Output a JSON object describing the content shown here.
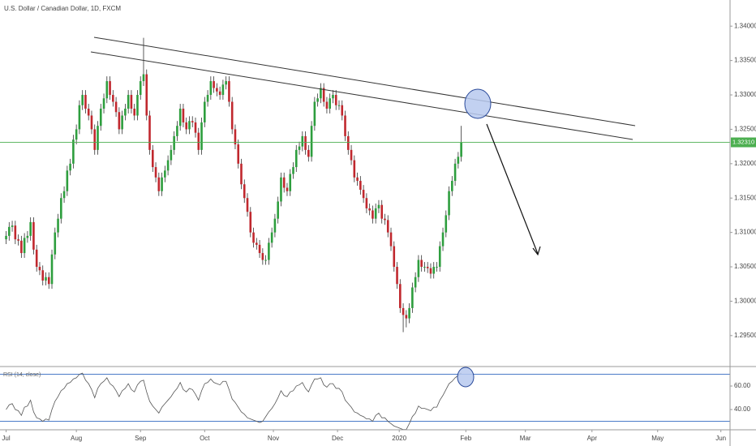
{
  "chart_data": [
    {
      "type": "candlestick",
      "title": "U.S. Dollar / Canadian Dollar, 1D, FXCM",
      "up_color": "#2e9e3e",
      "down_color": "#c0282e",
      "wick_color": "#333333",
      "open": [
        1.309,
        1.3095,
        1.3108,
        1.311,
        1.309,
        1.3088,
        1.307,
        1.3092,
        1.3095,
        1.3115,
        1.3075,
        1.305,
        1.3045,
        1.303,
        1.3035,
        1.3025,
        1.3068,
        1.31,
        1.312,
        1.315,
        1.316,
        1.319,
        1.32,
        1.3235,
        1.325,
        1.3285,
        1.33,
        1.328,
        1.327,
        1.325,
        1.322,
        1.3255,
        1.328,
        1.3295,
        1.332,
        1.33,
        1.329,
        1.3275,
        1.325,
        1.327,
        1.328,
        1.33,
        1.328,
        1.327,
        1.33,
        1.332,
        1.333,
        1.327,
        1.322,
        1.3195,
        1.318,
        1.316,
        1.318,
        1.319,
        1.3205,
        1.322,
        1.324,
        1.3255,
        1.328,
        1.326,
        1.325,
        1.3262,
        1.326,
        1.3245,
        1.322,
        1.326,
        1.329,
        1.33,
        1.332,
        1.331,
        1.3305,
        1.33,
        1.3315,
        1.332,
        1.329,
        1.325,
        1.3228,
        1.32,
        1.317,
        1.315,
        1.313,
        1.31,
        1.3085,
        1.3082,
        1.307,
        1.306,
        1.306,
        1.3085,
        1.31,
        1.312,
        1.3145,
        1.318,
        1.3165,
        1.316,
        1.3185,
        1.3195,
        1.322,
        1.3225,
        1.324,
        1.322,
        1.321,
        1.3255,
        1.329,
        1.3295,
        1.331,
        1.329,
        1.328,
        1.3295,
        1.33,
        1.3285,
        1.3285,
        1.327,
        1.324,
        1.322,
        1.3205,
        1.318,
        1.3175,
        1.3162,
        1.315,
        1.3135,
        1.3132,
        1.312,
        1.3135,
        1.314,
        1.312,
        1.3118,
        1.31,
        1.308,
        1.305,
        1.3025,
        1.299,
        1.298,
        1.2975,
        1.299,
        1.302,
        1.3035,
        1.306,
        1.305,
        1.305,
        1.3048,
        1.304,
        1.305,
        1.305,
        1.308,
        1.31,
        1.3125,
        1.316,
        1.3175,
        1.32,
        1.321
      ],
      "high": [
        1.3102,
        1.3115,
        1.3117,
        1.3117,
        1.3097,
        1.3095,
        1.3099,
        1.3102,
        1.3122,
        1.3122,
        1.3082,
        1.3057,
        1.3052,
        1.3042,
        1.3042,
        1.3075,
        1.3107,
        1.3127,
        1.3157,
        1.3167,
        1.3197,
        1.3207,
        1.3242,
        1.3257,
        1.3292,
        1.3307,
        1.3307,
        1.3287,
        1.3277,
        1.3257,
        1.3262,
        1.3287,
        1.3302,
        1.3327,
        1.3327,
        1.3307,
        1.3297,
        1.3282,
        1.3277,
        1.3287,
        1.3307,
        1.3307,
        1.3287,
        1.3307,
        1.3327,
        1.3383,
        1.3337,
        1.3277,
        1.3227,
        1.3202,
        1.3187,
        1.3187,
        1.3197,
        1.3212,
        1.3227,
        1.3247,
        1.3262,
        1.3287,
        1.3287,
        1.3267,
        1.3269,
        1.3269,
        1.3267,
        1.3252,
        1.3267,
        1.3297,
        1.3307,
        1.3327,
        1.3327,
        1.3317,
        1.3312,
        1.3322,
        1.3327,
        1.3327,
        1.3297,
        1.3257,
        1.3235,
        1.3207,
        1.3177,
        1.3157,
        1.3137,
        1.3107,
        1.3092,
        1.3089,
        1.3077,
        1.3067,
        1.3092,
        1.3107,
        1.3127,
        1.3152,
        1.3187,
        1.3187,
        1.3172,
        1.3192,
        1.3202,
        1.3227,
        1.3232,
        1.3247,
        1.3247,
        1.3227,
        1.3262,
        1.3297,
        1.3302,
        1.3317,
        1.3317,
        1.3297,
        1.3302,
        1.3307,
        1.3307,
        1.3292,
        1.3292,
        1.3277,
        1.3247,
        1.3227,
        1.3212,
        1.3187,
        1.3182,
        1.3169,
        1.3157,
        1.3142,
        1.3139,
        1.3142,
        1.3147,
        1.3147,
        1.3127,
        1.3125,
        1.3107,
        1.3087,
        1.3057,
        1.3032,
        1.2997,
        1.2987,
        1.2997,
        1.3027,
        1.3042,
        1.3067,
        1.3067,
        1.3057,
        1.3057,
        1.3055,
        1.3057,
        1.3057,
        1.3087,
        1.3107,
        1.3132,
        1.3167,
        1.3182,
        1.3207,
        1.3217,
        1.3255
      ],
      "low": [
        1.3083,
        1.3088,
        1.3101,
        1.3083,
        1.3081,
        1.3063,
        1.3063,
        1.3085,
        1.3088,
        1.3068,
        1.3043,
        1.3038,
        1.3023,
        1.3023,
        1.3018,
        1.3018,
        1.3061,
        1.3093,
        1.3113,
        1.3143,
        1.3153,
        1.3183,
        1.3193,
        1.3228,
        1.3243,
        1.3278,
        1.3273,
        1.3263,
        1.3243,
        1.3213,
        1.3213,
        1.3248,
        1.3273,
        1.3288,
        1.3293,
        1.3283,
        1.3268,
        1.3243,
        1.3243,
        1.3263,
        1.3273,
        1.3273,
        1.3263,
        1.3263,
        1.3293,
        1.3313,
        1.3263,
        1.3213,
        1.3188,
        1.3173,
        1.3153,
        1.3153,
        1.3173,
        1.3183,
        1.3198,
        1.3213,
        1.3233,
        1.3248,
        1.3253,
        1.3243,
        1.3243,
        1.3253,
        1.3238,
        1.3213,
        1.3213,
        1.3253,
        1.3283,
        1.3293,
        1.3303,
        1.3298,
        1.3293,
        1.3293,
        1.3308,
        1.3283,
        1.3243,
        1.3221,
        1.3193,
        1.3163,
        1.3143,
        1.3123,
        1.3093,
        1.3078,
        1.3075,
        1.3063,
        1.3053,
        1.3053,
        1.3053,
        1.3078,
        1.3093,
        1.3113,
        1.3138,
        1.3158,
        1.3153,
        1.3153,
        1.3178,
        1.3188,
        1.3213,
        1.3218,
        1.3213,
        1.3203,
        1.3203,
        1.3248,
        1.3283,
        1.3288,
        1.3283,
        1.3273,
        1.3273,
        1.3288,
        1.3278,
        1.3278,
        1.3263,
        1.3233,
        1.3213,
        1.3198,
        1.3173,
        1.3168,
        1.3155,
        1.3143,
        1.3128,
        1.3125,
        1.3113,
        1.3113,
        1.3128,
        1.3113,
        1.3111,
        1.3093,
        1.3073,
        1.3043,
        1.3018,
        1.2983,
        1.2955,
        1.2962,
        1.2968,
        1.2983,
        1.3013,
        1.3028,
        1.3043,
        1.3043,
        1.3041,
        1.3033,
        1.3033,
        1.3043,
        1.3043,
        1.3073,
        1.3093,
        1.3118,
        1.3153,
        1.3168,
        1.3193,
        1.3203
      ],
      "close": [
        1.3095,
        1.3108,
        1.311,
        1.309,
        1.3088,
        1.307,
        1.3092,
        1.3095,
        1.3115,
        1.3075,
        1.305,
        1.3045,
        1.303,
        1.3035,
        1.3025,
        1.3068,
        1.31,
        1.312,
        1.315,
        1.316,
        1.319,
        1.32,
        1.3235,
        1.325,
        1.3285,
        1.33,
        1.328,
        1.327,
        1.325,
        1.322,
        1.3255,
        1.328,
        1.3295,
        1.332,
        1.33,
        1.329,
        1.3275,
        1.325,
        1.327,
        1.328,
        1.33,
        1.328,
        1.327,
        1.33,
        1.332,
        1.333,
        1.327,
        1.322,
        1.3195,
        1.318,
        1.316,
        1.318,
        1.319,
        1.3205,
        1.322,
        1.324,
        1.3255,
        1.328,
        1.326,
        1.325,
        1.3262,
        1.326,
        1.3245,
        1.322,
        1.326,
        1.329,
        1.33,
        1.332,
        1.331,
        1.3305,
        1.33,
        1.3315,
        1.332,
        1.329,
        1.325,
        1.3228,
        1.32,
        1.317,
        1.315,
        1.313,
        1.31,
        1.3085,
        1.3082,
        1.307,
        1.306,
        1.306,
        1.3085,
        1.31,
        1.312,
        1.3145,
        1.318,
        1.3165,
        1.316,
        1.3185,
        1.3195,
        1.322,
        1.3225,
        1.324,
        1.322,
        1.321,
        1.3255,
        1.329,
        1.3295,
        1.331,
        1.329,
        1.328,
        1.3295,
        1.33,
        1.3285,
        1.3285,
        1.327,
        1.324,
        1.322,
        1.3205,
        1.318,
        1.3175,
        1.3162,
        1.315,
        1.3135,
        1.3132,
        1.312,
        1.3135,
        1.314,
        1.312,
        1.3118,
        1.31,
        1.308,
        1.305,
        1.3025,
        1.299,
        1.298,
        1.2975,
        1.299,
        1.302,
        1.3035,
        1.306,
        1.305,
        1.305,
        1.3048,
        1.304,
        1.305,
        1.305,
        1.308,
        1.31,
        1.3125,
        1.316,
        1.3175,
        1.32,
        1.321,
        1.3231
      ],
      "ylim": [
        1.2905,
        1.3438
      ],
      "yticks": [
        {
          "value": 1.34,
          "label": "1.34000"
        },
        {
          "value": 1.335,
          "label": "1.33500"
        },
        {
          "value": 1.33,
          "label": "1.33000"
        },
        {
          "value": 1.325,
          "label": "1.32500"
        },
        {
          "value": 1.32,
          "label": "1.32000"
        },
        {
          "value": 1.315,
          "label": "1.31500"
        },
        {
          "value": 1.31,
          "label": "1.31000"
        },
        {
          "value": 1.305,
          "label": "1.30500"
        },
        {
          "value": 1.3,
          "label": "1.30000"
        },
        {
          "value": 1.295,
          "label": "1.29500"
        }
      ],
      "xlim": [
        -2,
        237
      ],
      "xticks": [
        {
          "value": 0,
          "label": "Jul"
        },
        {
          "value": 23,
          "label": "Aug"
        },
        {
          "value": 44,
          "label": "Sep"
        },
        {
          "value": 65,
          "label": "Oct"
        },
        {
          "value": 87.5,
          "label": "Nov"
        },
        {
          "value": 108.5,
          "label": "Dec"
        },
        {
          "value": 128.7,
          "label": "2020"
        },
        {
          "value": 150.5,
          "label": "Feb"
        },
        {
          "value": 170,
          "label": "Mar"
        },
        {
          "value": 191.8,
          "label": "Apr"
        },
        {
          "value": 213.3,
          "label": "May"
        },
        {
          "value": 234,
          "label": "Jun"
        }
      ],
      "last_price": {
        "value": 1.3231,
        "label": "1.32310"
      },
      "last_price_color": "#4caf50"
    },
    {
      "type": "line",
      "title": "RSI (14, close)",
      "color": "#555555",
      "values": [
        40,
        44,
        45,
        40,
        39,
        35,
        42,
        43,
        48,
        38,
        33,
        32,
        30,
        32,
        31,
        40,
        47,
        51,
        56,
        58,
        62,
        63,
        66,
        67,
        70,
        71,
        65,
        62,
        57,
        50,
        58,
        62,
        64,
        67,
        62,
        60,
        56,
        51,
        56,
        58,
        62,
        57,
        55,
        61,
        64,
        65,
        55,
        47,
        43,
        40,
        37,
        42,
        45,
        48,
        51,
        55,
        58,
        63,
        57,
        55,
        58,
        57,
        53,
        48,
        56,
        62,
        63,
        66,
        63,
        62,
        61,
        64,
        64,
        57,
        49,
        46,
        42,
        38,
        36,
        33,
        32,
        31,
        30,
        29,
        30,
        34,
        38,
        41,
        45,
        50,
        56,
        52,
        51,
        55,
        56,
        60,
        61,
        63,
        58,
        55,
        61,
        66,
        66,
        67,
        61,
        59,
        62,
        62,
        58,
        58,
        55,
        48,
        45,
        42,
        38,
        37,
        35,
        34,
        32,
        32,
        30,
        35,
        37,
        33,
        33,
        30,
        28,
        26,
        25,
        24,
        23,
        23,
        28,
        34,
        37,
        43,
        41,
        41,
        40,
        39,
        42,
        42,
        48,
        52,
        57,
        62,
        64,
        67,
        69,
        71
      ],
      "ylim": [
        22.8,
        74.5
      ],
      "yticks": [
        {
          "value": 60,
          "label": "60.00"
        },
        {
          "value": 40,
          "label": "40.00"
        }
      ],
      "bands": [
        70,
        30
      ],
      "band_color": "#4a7bc8"
    }
  ]
}
